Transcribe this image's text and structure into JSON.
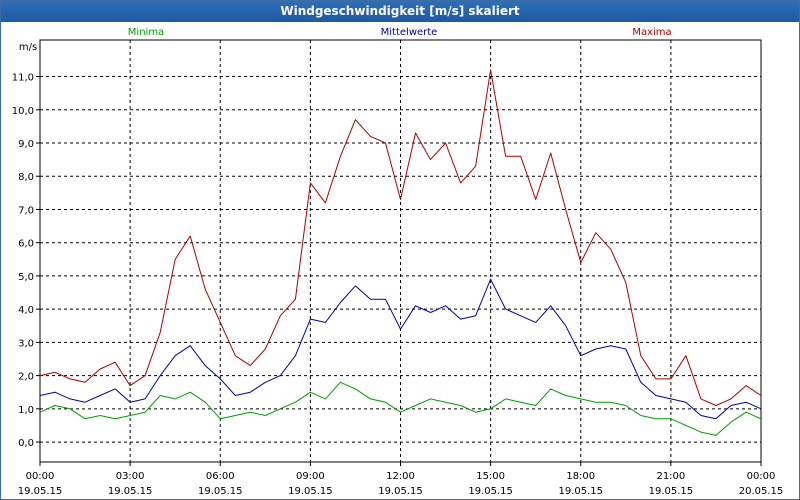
{
  "window": {
    "title": "Windgeschwindigkeit [m/s] skaliert"
  },
  "chart_data": {
    "type": "line",
    "title": "Windgeschwindigkeit [m/s] skaliert",
    "ylabel": "m/s",
    "ylim": [
      -0.6,
      12.1
    ],
    "yticks": [
      "0,0",
      "1,0",
      "2,0",
      "3,0",
      "4,0",
      "5,0",
      "6,0",
      "7,0",
      "8,0",
      "9,0",
      "10,0",
      "11,0"
    ],
    "xlim": [
      0,
      24
    ],
    "xticks": [
      {
        "time": "00:00",
        "date": "19.05.15"
      },
      {
        "time": "03:00",
        "date": "19.05.15"
      },
      {
        "time": "06:00",
        "date": "19.05.15"
      },
      {
        "time": "09:00",
        "date": "19.05.15"
      },
      {
        "time": "12:00",
        "date": "19.05.15"
      },
      {
        "time": "15:00",
        "date": "19.05.15"
      },
      {
        "time": "18:00",
        "date": "19.05.15"
      },
      {
        "time": "21:00",
        "date": "19.05.15"
      },
      {
        "time": "00:00",
        "date": "20.05.15"
      }
    ],
    "grid": true,
    "legend_position": "top",
    "series": [
      {
        "name": "Minima",
        "color": "#00a000",
        "x": [
          0,
          0.5,
          1,
          1.5,
          2,
          2.5,
          3,
          3.5,
          4,
          4.5,
          5,
          5.5,
          6,
          6.5,
          7,
          7.5,
          8,
          8.5,
          9,
          9.5,
          10,
          10.5,
          11,
          11.5,
          12,
          12.5,
          13,
          13.5,
          14,
          14.5,
          15,
          15.5,
          16,
          16.5,
          17,
          17.5,
          18,
          18.5,
          19,
          19.5,
          20,
          20.5,
          21,
          21.5,
          22,
          22.5,
          23,
          23.5,
          24
        ],
        "values": [
          0.9,
          1.1,
          1.0,
          0.7,
          0.8,
          0.7,
          0.8,
          0.9,
          1.4,
          1.3,
          1.5,
          1.2,
          0.7,
          0.8,
          0.9,
          0.8,
          1.0,
          1.2,
          1.5,
          1.3,
          1.8,
          1.6,
          1.3,
          1.2,
          0.9,
          1.1,
          1.3,
          1.2,
          1.1,
          0.9,
          1.0,
          1.3,
          1.2,
          1.1,
          1.6,
          1.4,
          1.3,
          1.2,
          1.2,
          1.1,
          0.8,
          0.7,
          0.7,
          0.5,
          0.3,
          0.2,
          0.6,
          0.9,
          0.7
        ]
      },
      {
        "name": "Mittelwerte",
        "color": "#0000b0",
        "x": [
          0,
          0.5,
          1,
          1.5,
          2,
          2.5,
          3,
          3.5,
          4,
          4.5,
          5,
          5.5,
          6,
          6.5,
          7,
          7.5,
          8,
          8.5,
          9,
          9.5,
          10,
          10.5,
          11,
          11.5,
          12,
          12.5,
          13,
          13.5,
          14,
          14.5,
          15,
          15.5,
          16,
          16.5,
          17,
          17.5,
          18,
          18.5,
          19,
          19.5,
          20,
          20.5,
          21,
          21.5,
          22,
          22.5,
          23,
          23.5,
          24
        ],
        "values": [
          1.4,
          1.5,
          1.3,
          1.2,
          1.4,
          1.6,
          1.2,
          1.3,
          2.0,
          2.6,
          2.9,
          2.3,
          1.9,
          1.4,
          1.5,
          1.8,
          2.0,
          2.6,
          3.7,
          3.6,
          4.2,
          4.7,
          4.3,
          4.3,
          3.4,
          4.1,
          3.9,
          4.1,
          3.7,
          3.8,
          4.9,
          4.0,
          3.8,
          3.6,
          4.1,
          3.5,
          2.6,
          2.8,
          2.9,
          2.8,
          1.8,
          1.4,
          1.3,
          1.2,
          0.8,
          0.7,
          1.1,
          1.2,
          1.0
        ]
      },
      {
        "name": "Maxima",
        "color": "#b00000",
        "x": [
          0,
          0.5,
          1,
          1.5,
          2,
          2.5,
          3,
          3.5,
          4,
          4.5,
          5,
          5.5,
          6,
          6.5,
          7,
          7.5,
          8,
          8.5,
          9,
          9.5,
          10,
          10.5,
          11,
          11.5,
          12,
          12.5,
          13,
          13.5,
          14,
          14.5,
          15,
          15.5,
          16,
          16.5,
          17,
          17.5,
          18,
          18.5,
          19,
          19.5,
          20,
          20.5,
          21,
          21.5,
          22,
          22.5,
          23,
          23.5,
          24
        ],
        "values": [
          2.0,
          2.1,
          1.9,
          1.8,
          2.2,
          2.4,
          1.7,
          2.0,
          3.3,
          5.5,
          6.2,
          4.6,
          3.6,
          2.6,
          2.3,
          2.8,
          3.8,
          4.3,
          7.8,
          7.2,
          8.6,
          9.7,
          9.2,
          9.0,
          7.3,
          9.3,
          8.5,
          9.0,
          7.8,
          8.3,
          11.2,
          8.6,
          8.6,
          7.3,
          8.7,
          7.0,
          5.4,
          6.3,
          5.8,
          4.8,
          2.6,
          1.9,
          1.9,
          2.6,
          1.3,
          1.1,
          1.3,
          1.7,
          1.4
        ]
      }
    ]
  }
}
